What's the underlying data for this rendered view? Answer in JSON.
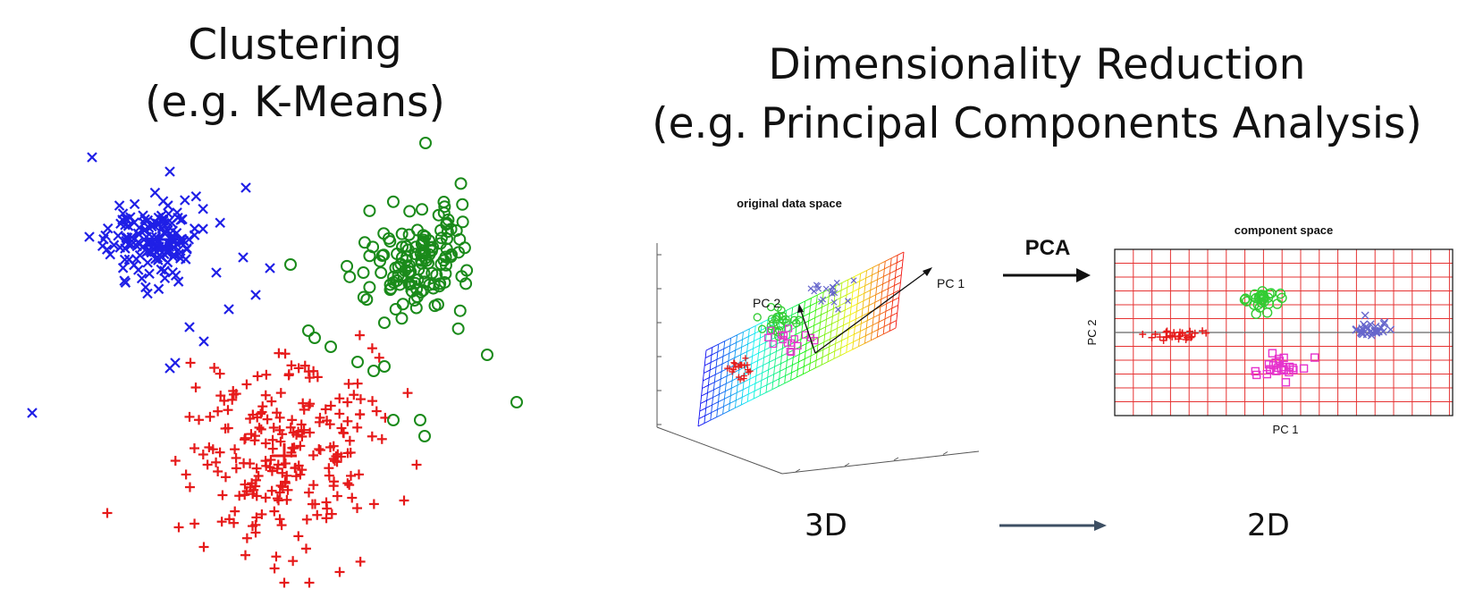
{
  "clustering": {
    "title": "Clustering",
    "subtitle": "(e.g. K-Means)"
  },
  "dim_reduction": {
    "title": "Dimensionality Reduction",
    "subtitle": "(e.g. Principal Components Analysis)",
    "original_plot": {
      "title": "original data space",
      "axis_pc1": "PC 1",
      "axis_pc2": "PC 2"
    },
    "arrow_label": "PCA",
    "component_plot": {
      "title": "component space",
      "xlabel": "PC 1",
      "ylabel": "PC 2"
    },
    "from_label": "3D",
    "to_label": "2D"
  },
  "colors": {
    "blue": "#1f1fe6",
    "green": "#1a8a1a",
    "red": "#e61a1a",
    "light_green": "#33cc33",
    "magenta": "#e633cc",
    "slate_blue": "#6666cc",
    "grid_red": "#e63333",
    "arrow": "#3d4f63"
  }
}
